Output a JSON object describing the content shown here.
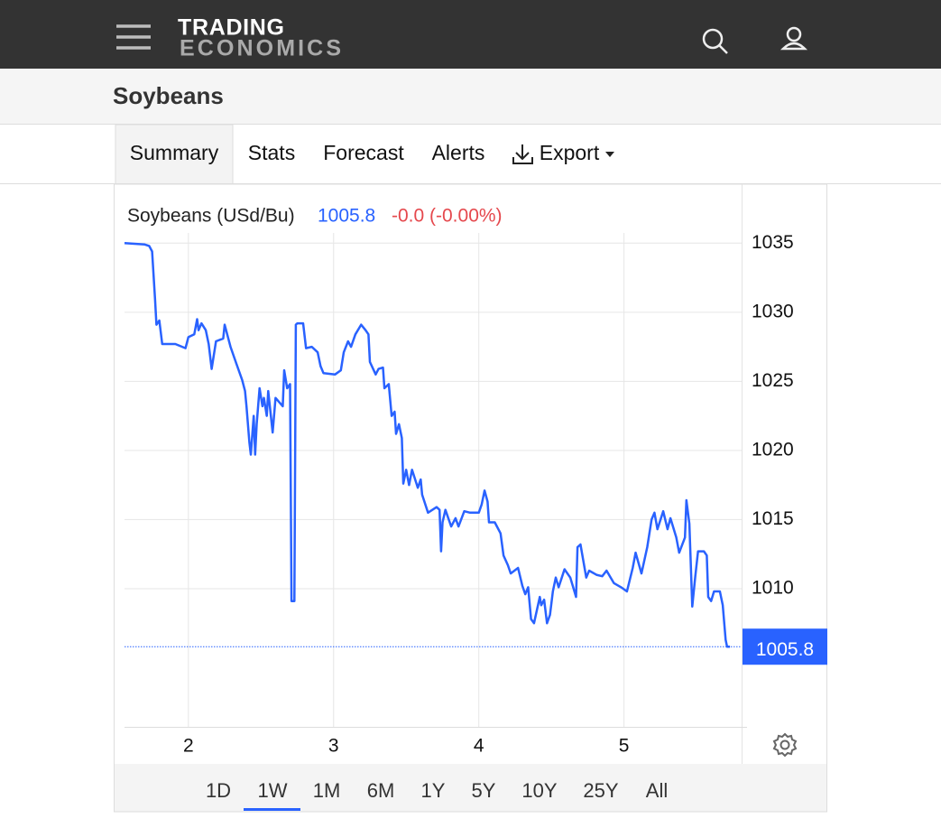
{
  "logo": {
    "line1": "TRADING",
    "line2": "ECONOMICS"
  },
  "page_title": "Soybeans",
  "tabs": [
    "Summary",
    "Stats",
    "Forecast",
    "Alerts",
    "Export"
  ],
  "active_tab": "Summary",
  "chart_data": {
    "type": "line",
    "change": "-0.0 (-0.00%)",
    "x": [
      1.56,
      1.7,
      1.73,
      1.75,
      1.77,
      1.78,
      1.8,
      1.82,
      1.86,
      1.91,
      1.98,
      2.0,
      2.04,
      2.06,
      2.07,
      2.09,
      2.12,
      2.14,
      2.16,
      2.19,
      2.24,
      2.25,
      2.29,
      2.33,
      2.37,
      2.39,
      2.4,
      2.42,
      2.43,
      2.45,
      2.46,
      2.47,
      2.49,
      2.51,
      2.52,
      2.54,
      2.55,
      2.58,
      2.6,
      2.65,
      2.66,
      2.68,
      2.7,
      2.71,
      2.73,
      2.74,
      2.75,
      2.79,
      2.81,
      2.85,
      2.89,
      2.91,
      2.93,
      3.01,
      3.05,
      3.07,
      3.1,
      3.12,
      3.15,
      3.19,
      3.22,
      3.24,
      3.25,
      3.29,
      3.31,
      3.34,
      3.35,
      3.38,
      3.4,
      3.42,
      3.43,
      3.45,
      3.47,
      3.48,
      3.5,
      3.52,
      3.54,
      3.58,
      3.6,
      3.61,
      3.65,
      3.71,
      3.73,
      3.74,
      3.75,
      3.77,
      3.81,
      3.84,
      3.86,
      3.9,
      3.94,
      4.0,
      4.02,
      4.04,
      4.06,
      4.07,
      4.11,
      4.15,
      4.17,
      4.2,
      4.22,
      4.27,
      4.3,
      4.32,
      4.34,
      4.36,
      4.38,
      4.42,
      4.43,
      4.45,
      4.47,
      4.49,
      4.51,
      4.53,
      4.55,
      4.59,
      4.63,
      4.67,
      4.68,
      4.7,
      4.74,
      4.76,
      4.81,
      4.85,
      4.88,
      4.93,
      4.98,
      5.02,
      5.06,
      5.08,
      5.12,
      5.16,
      5.19,
      5.21,
      5.23,
      5.27,
      5.3,
      5.32,
      5.36,
      5.38,
      5.42,
      5.43,
      5.45,
      5.47,
      5.49,
      5.51,
      5.55,
      5.57,
      5.58,
      5.6,
      5.62,
      5.66,
      5.68,
      5.7,
      5.71,
      5.73
    ],
    "series": [
      {
        "name": "Soybeans (USd/Bu)",
        "color": "#2962ff",
        "values": [
          1035.0,
          1034.9,
          1034.8,
          1034.4,
          1031.0,
          1029.1,
          1029.4,
          1027.7,
          1027.7,
          1027.7,
          1027.4,
          1028.2,
          1028.4,
          1029.5,
          1028.7,
          1029.2,
          1028.7,
          1027.7,
          1025.9,
          1027.9,
          1028.1,
          1029.1,
          1027.5,
          1026.3,
          1025.1,
          1024.3,
          1023.2,
          1020.6,
          1019.7,
          1022.5,
          1019.7,
          1021.9,
          1024.5,
          1023.2,
          1023.8,
          1022.5,
          1024.3,
          1021.3,
          1023.8,
          1023.2,
          1025.8,
          1024.5,
          1024.8,
          1009.1,
          1009.1,
          1029.1,
          1029.2,
          1029.2,
          1027.4,
          1027.5,
          1027.1,
          1026.1,
          1025.6,
          1025.5,
          1025.8,
          1027.1,
          1027.9,
          1027.5,
          1028.4,
          1029.1,
          1028.7,
          1028.4,
          1026.4,
          1025.5,
          1025.9,
          1026.0,
          1024.5,
          1024.8,
          1022.5,
          1022.8,
          1021.2,
          1021.9,
          1020.9,
          1017.6,
          1018.6,
          1017.5,
          1018.6,
          1017.3,
          1017.9,
          1016.8,
          1015.5,
          1015.9,
          1015.7,
          1012.7,
          1014.8,
          1015.7,
          1014.5,
          1015.1,
          1014.5,
          1015.6,
          1015.5,
          1015.5,
          1016.1,
          1017.1,
          1016.3,
          1014.8,
          1014.8,
          1014.0,
          1012.4,
          1011.7,
          1011.1,
          1011.5,
          1010.2,
          1009.6,
          1010.1,
          1007.8,
          1007.5,
          1009.4,
          1008.8,
          1009.2,
          1007.5,
          1008.1,
          1009.8,
          1010.8,
          1010.1,
          1011.4,
          1010.8,
          1009.4,
          1013.0,
          1013.2,
          1010.8,
          1011.3,
          1011.0,
          1010.9,
          1011.3,
          1010.4,
          1010.1,
          1009.8,
          1011.5,
          1012.6,
          1011.1,
          1013.0,
          1015.0,
          1015.5,
          1014.3,
          1015.6,
          1014.3,
          1015.1,
          1013.7,
          1012.6,
          1013.7,
          1016.4,
          1014.7,
          1008.7,
          1010.8,
          1012.7,
          1012.7,
          1012.4,
          1009.4,
          1009.1,
          1009.8,
          1009.8,
          1008.8,
          1006.3,
          1005.8,
          1005.8
        ]
      }
    ],
    "change_color": "#e5484d",
    "xlim": [
      1.56,
      5.81
    ],
    "xticks": [
      2,
      3,
      4,
      5
    ],
    "ylim": [
      1000,
      1036
    ],
    "yticks": [
      1010,
      1015,
      1020,
      1025,
      1030,
      1035
    ],
    "grid": true
  },
  "ranges": [
    "1D",
    "1W",
    "1M",
    "6M",
    "1Y",
    "5Y",
    "10Y",
    "25Y",
    "All"
  ],
  "active_range": "1W"
}
